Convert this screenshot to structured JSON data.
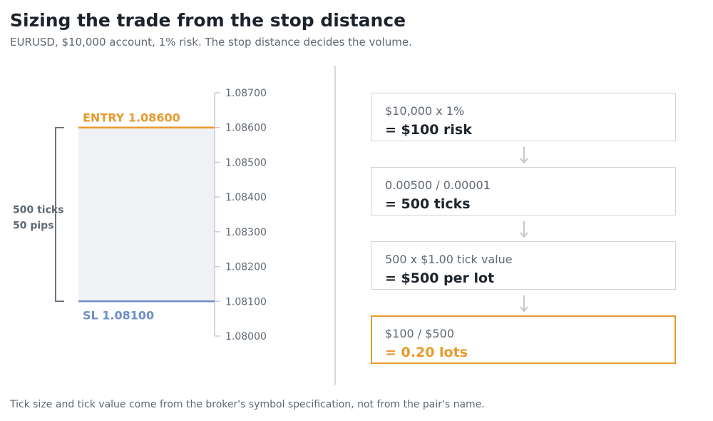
{
  "header": {
    "title": "Sizing the trade from the stop distance",
    "subtitle": "EURUSD, $10,000 account, 1% risk. The stop distance decides the volume."
  },
  "ladder": {
    "axis_ticks": [
      "1.08700",
      "1.08600",
      "1.08500",
      "1.08400",
      "1.08300",
      "1.08200",
      "1.08100",
      "1.08000"
    ],
    "axis_range": [
      1.08,
      1.087
    ],
    "entry": {
      "label": "ENTRY  1.08600",
      "price": 1.086
    },
    "stop": {
      "label": "SL  1.08100",
      "price": 1.081
    },
    "distance": {
      "ticks_label": "500 ticks",
      "pips_label": "50 pips"
    },
    "colors": {
      "entry": "#e89a2e",
      "stop": "#6f8fc4",
      "zone": "#f0f1f4",
      "bracket": "#5f6873",
      "axis": "#c9cdd2"
    }
  },
  "steps": [
    {
      "expression": "$10,000  x  1%",
      "result": "= $100 risk"
    },
    {
      "expression": "0.00500  /  0.00001",
      "result": "= 500 ticks"
    },
    {
      "expression": "500  x  $1.00 tick value",
      "result": "= $500 per lot"
    },
    {
      "expression": "$100  /  $500",
      "result": "= 0.20 lots",
      "highlight": true
    }
  ],
  "footnote": "Tick size and tick value come from the broker's symbol specification, not from the pair's name."
}
